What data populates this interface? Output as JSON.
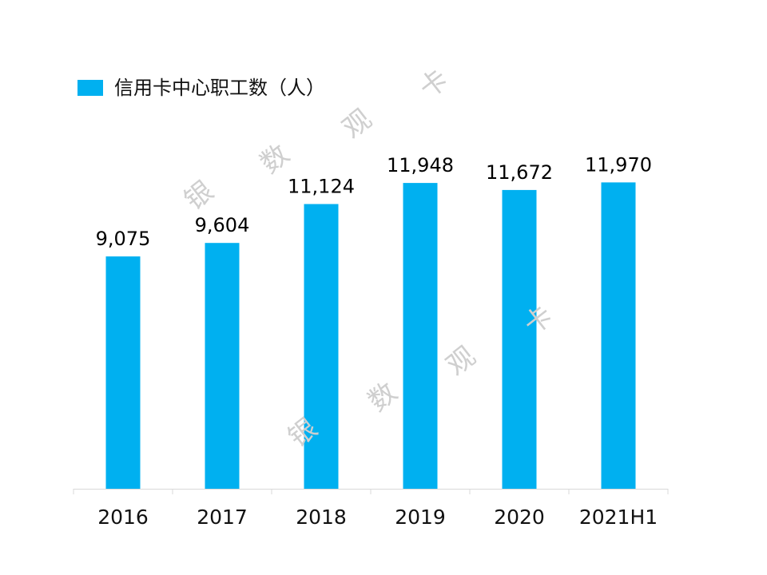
{
  "chart_data": {
    "type": "bar",
    "categories": [
      "2016",
      "2017",
      "2018",
      "2019",
      "2020",
      "2021H1"
    ],
    "series": [
      {
        "name": "信用卡中心职工数（人）",
        "values": [
          9075,
          9604,
          11124,
          11948,
          11672,
          11970
        ],
        "labels": [
          "9,075",
          "9,604",
          "11,124",
          "11,948",
          "11,672",
          "11,970"
        ],
        "color": "#00B0F0"
      }
    ],
    "title": "",
    "xlabel": "",
    "ylabel": "",
    "ylim": [
      0,
      15000
    ],
    "grid": false,
    "legend": "top-left"
  },
  "watermark": {
    "chars": [
      "银",
      "数",
      "观",
      "卡"
    ],
    "color": "#cfcfcf"
  }
}
